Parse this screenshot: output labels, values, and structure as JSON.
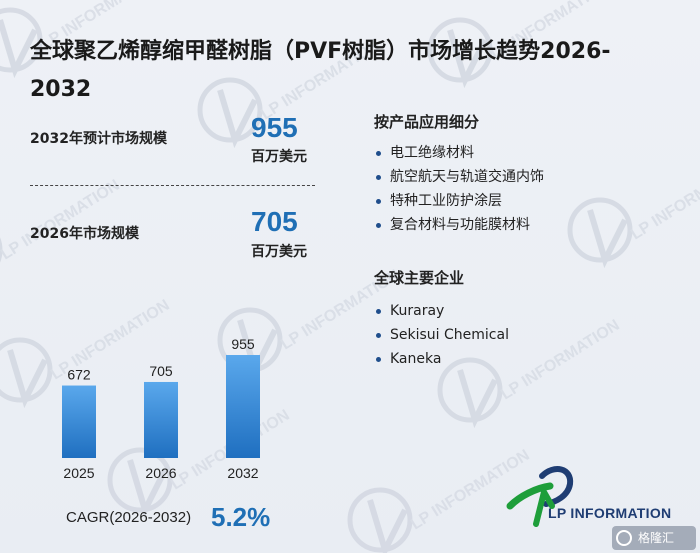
{
  "title": "全球聚乙烯醇缩甲醛树脂（PVF树脂）市场增长趋势2026-2032",
  "metrics": {
    "forecast_label": "2032年预计市场规模",
    "forecast_value": "955",
    "forecast_unit": "百万美元",
    "current_label": "2026年市场规模",
    "current_value": "705",
    "current_unit": "百万美元"
  },
  "segments": {
    "title": "按产品应用细分",
    "items": [
      "电工绝缘材料",
      "航空航天与轨道交通内饰",
      "特种工业防护涂层",
      "复合材料与功能膜材料"
    ]
  },
  "companies": {
    "title": "全球主要企业",
    "items": [
      "Kuraray",
      "Sekisui Chemical",
      "Kaneka"
    ]
  },
  "cagr": {
    "label": "CAGR(2026-2032)",
    "value": "5.2%"
  },
  "logo": {
    "text": "LP INFORMATION",
    "watermark_text": "LP INFORMATION"
  },
  "badge": {
    "text": "格隆汇"
  },
  "colors": {
    "accent": "#1f6fb5",
    "bar_top": "#5aa8ec",
    "bar_bottom": "#1f6fc0",
    "logo_green": "#1e9e3a",
    "logo_blue": "#1f3d73"
  },
  "chart_data": {
    "type": "bar",
    "categories": [
      "2025",
      "2026",
      "2032"
    ],
    "values": [
      672,
      705,
      955
    ],
    "title": "",
    "xlabel": "",
    "ylabel": "",
    "ylim": [
      0,
      955
    ]
  }
}
